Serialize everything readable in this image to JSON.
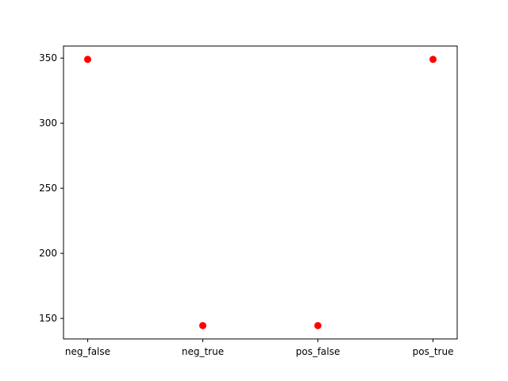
{
  "chart_data": {
    "type": "scatter",
    "title": "",
    "xlabel": "",
    "ylabel": "",
    "categories": [
      "neg_false",
      "neg_true",
      "pos_false",
      "pos_true"
    ],
    "values": [
      349,
      144.5,
      144.5,
      349
    ],
    "yticks": [
      150,
      200,
      250,
      300,
      350
    ],
    "ylim": [
      134.25,
      359.25
    ],
    "grid": false,
    "legend": "none",
    "colors": {
      "marker": "#ff0000",
      "axes": "#000000",
      "background": "#ffffff"
    }
  }
}
